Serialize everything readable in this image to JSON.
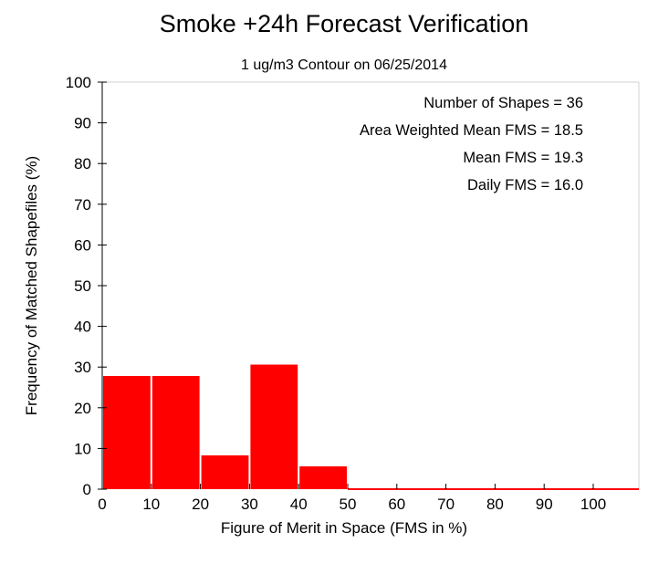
{
  "chart_data": {
    "type": "bar",
    "title": "Smoke +24h Forecast Verification",
    "subtitle": "1 ug/m3 Contour on 06/25/2014",
    "xlabel": "Figure of Merit in Space (FMS in %)",
    "ylabel": "Frequency of Matched Shapefiles (%)",
    "xlim": [
      0,
      100
    ],
    "ylim": [
      0,
      100
    ],
    "xticks": [
      "0",
      "10",
      "20",
      "30",
      "40",
      "50",
      "60",
      "70",
      "80",
      "90",
      "100"
    ],
    "yticks": [
      "0",
      "10",
      "20",
      "30",
      "40",
      "50",
      "60",
      "70",
      "80",
      "90",
      "100"
    ],
    "bin_width": 10,
    "categories": [
      "0-10",
      "10-20",
      "20-30",
      "30-40",
      "40-50",
      "50-60",
      "60-70",
      "70-80",
      "80-90",
      "90-100"
    ],
    "values": [
      27.8,
      27.8,
      8.3,
      30.6,
      5.6,
      0,
      0,
      0,
      0,
      0
    ],
    "bar_color": "#ff0000",
    "grid": false,
    "stats": [
      "Number of Shapes = 36",
      "Area Weighted Mean FMS = 18.5",
      "Mean FMS = 19.3",
      "Daily FMS = 16.0"
    ]
  }
}
